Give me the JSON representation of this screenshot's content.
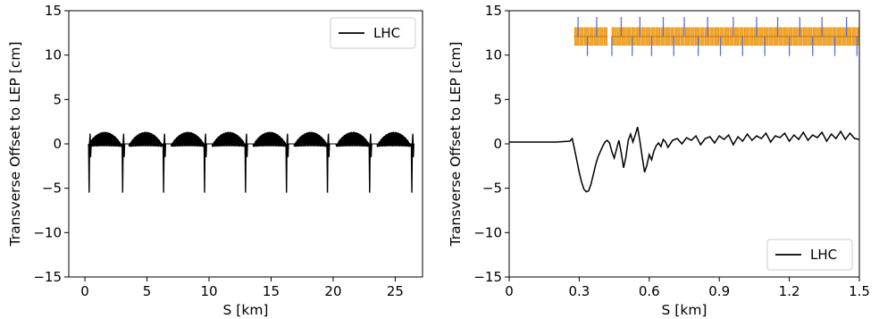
{
  "figure": {
    "colors": {
      "line": "#000000",
      "magnet_fill": "#f5a623",
      "magnet_stroke": "#d9861a",
      "marker": "#5b6fd6"
    }
  },
  "chart_data": [
    {
      "type": "line",
      "xlabel": "S [km]",
      "ylabel": "Transverse Offset to LEP [cm]",
      "xlim": [
        -1.3,
        27.2
      ],
      "ylim": [
        -15,
        15
      ],
      "xticks": [
        0,
        5,
        10,
        15,
        20,
        25
      ],
      "xtick_labels": [
        "0",
        "5",
        "10",
        "15",
        "20",
        "25"
      ],
      "yticks": [
        -15,
        -10,
        -5,
        0,
        5,
        10,
        15
      ],
      "ytick_labels": [
        "−15",
        "−10",
        "−5",
        "0",
        "5",
        "10",
        "15"
      ],
      "legend": {
        "position": "top-right",
        "entries": [
          "LHC"
        ]
      },
      "grid": false,
      "pattern": {
        "description": "eight periodic arcs between insertion regions",
        "arc_centers_km": [
          1.6,
          4.9,
          8.3,
          11.6,
          14.9,
          18.2,
          21.6,
          24.9
        ],
        "arc_peak_cm": 1.3,
        "arc_trough_cm": -0.3,
        "insertion_spikes_km": [
          0.4,
          3.1,
          6.4,
          9.7,
          13.0,
          16.3,
          19.6,
          23.0,
          26.4
        ],
        "insertion_min_cm": -5.5,
        "insertion_max_cm": 1.9
      },
      "series": [
        {
          "name": "LHC",
          "color": "#000000"
        }
      ]
    },
    {
      "type": "line",
      "xlabel": "S [km]",
      "ylabel": "Transverse Offset to LEP [cm]",
      "xlim": [
        0,
        1.5
      ],
      "ylim": [
        -15,
        15
      ],
      "xticks": [
        0,
        0.3,
        0.6,
        0.9,
        1.2,
        1.5
      ],
      "xtick_labels": [
        "0",
        "0.3",
        "0.6",
        "0.9",
        "1.2",
        "1.5"
      ],
      "yticks": [
        -15,
        -10,
        -5,
        0,
        5,
        10,
        15
      ],
      "ytick_labels": [
        "−15",
        "−10",
        "−5",
        "0",
        "5",
        "10",
        "15"
      ],
      "legend": {
        "position": "bottom-right",
        "entries": [
          "LHC"
        ]
      },
      "grid": false,
      "series": [
        {
          "name": "LHC",
          "color": "#000000",
          "x": [
            0,
            0.1,
            0.2,
            0.26,
            0.27,
            0.28,
            0.29,
            0.3,
            0.31,
            0.32,
            0.33,
            0.34,
            0.35,
            0.36,
            0.37,
            0.38,
            0.39,
            0.4,
            0.41,
            0.42,
            0.43,
            0.44,
            0.45,
            0.46,
            0.47,
            0.48,
            0.49,
            0.5,
            0.51,
            0.52,
            0.53,
            0.54,
            0.55,
            0.56,
            0.57,
            0.58,
            0.59,
            0.6,
            0.61,
            0.62,
            0.63,
            0.64,
            0.65,
            0.66,
            0.67,
            0.68,
            0.7,
            0.72,
            0.74,
            0.76,
            0.78,
            0.8,
            0.82,
            0.84,
            0.86,
            0.88,
            0.9,
            0.92,
            0.94,
            0.96,
            0.98,
            1.0,
            1.02,
            1.04,
            1.06,
            1.08,
            1.1,
            1.12,
            1.14,
            1.16,
            1.18,
            1.2,
            1.22,
            1.24,
            1.26,
            1.28,
            1.3,
            1.32,
            1.34,
            1.36,
            1.38,
            1.4,
            1.42,
            1.44,
            1.46,
            1.48,
            1.5
          ],
          "values": [
            0.2,
            0.2,
            0.2,
            0.3,
            0.6,
            -0.6,
            -1.9,
            -3.2,
            -4.3,
            -5.1,
            -5.4,
            -5.3,
            -4.6,
            -3.5,
            -2.4,
            -1.5,
            -0.9,
            -0.3,
            0.2,
            0.4,
            0.1,
            -0.9,
            -1.6,
            -0.6,
            0.4,
            -1.0,
            -2.7,
            -1.5,
            0.4,
            1.1,
            0.2,
            1.0,
            1.9,
            0.3,
            -1.5,
            -3.2,
            -2.4,
            -1.2,
            -1.8,
            -0.8,
            -0.2,
            0.1,
            -0.3,
            0.5,
            0.2,
            -0.4,
            0.4,
            0.6,
            0.0,
            0.7,
            0.4,
            0.9,
            -0.1,
            0.6,
            0.8,
            0.1,
            0.9,
            0.5,
            1.0,
            -0.1,
            0.8,
            0.3,
            1.1,
            0.4,
            0.9,
            0.6,
            1.2,
            0.2,
            0.9,
            0.7,
            1.2,
            0.3,
            1.0,
            0.5,
            1.3,
            0.4,
            1.0,
            0.7,
            1.3,
            0.3,
            1.1,
            0.6,
            1.4,
            0.5,
            1.2,
            0.6,
            0.5
          ]
        }
      ],
      "magnet_band": {
        "y_center_cm": 12.1,
        "height_cm": 2.0,
        "blocks_km": [
          [
            0.28,
            0.42
          ],
          [
            0.44,
            1.5
          ]
        ],
        "segment_km": 0.021,
        "markers_km": [
          0.295,
          0.335,
          0.375,
          0.44,
          0.48,
          0.527,
          0.56,
          0.61,
          0.66,
          0.705,
          0.75,
          0.81,
          0.85,
          0.905,
          0.96,
          1.0,
          1.06,
          1.095,
          1.15,
          1.2,
          1.245,
          1.3,
          1.34,
          1.395,
          1.445,
          1.49
        ],
        "marker_span_cm": [
          9.9,
          14.3
        ]
      }
    }
  ]
}
